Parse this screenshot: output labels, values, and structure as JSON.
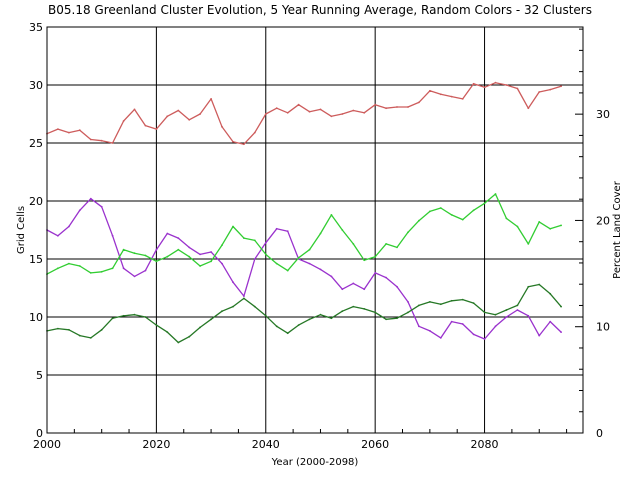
{
  "chart_data": {
    "type": "line",
    "title": "B05.18 Greenland Cluster Evolution, 5 Year Running Average, Random Colors - 32 Clusters",
    "xlabel": "Year (2000-2098)",
    "ylabel": "Grid Cells",
    "y2label": "Percent Land Cover",
    "xlim": [
      2000,
      2098
    ],
    "ylim": [
      0,
      35
    ],
    "y2lim": [
      0,
      38.2
    ],
    "x_ticks": [
      "2000",
      "2020",
      "2040",
      "2060",
      "2080"
    ],
    "x_tick_values": [
      2000,
      2020,
      2040,
      2060,
      2080
    ],
    "y_ticks": [
      "0",
      "5",
      "10",
      "15",
      "20",
      "25",
      "30",
      "35"
    ],
    "y_tick_values": [
      0,
      5,
      10,
      15,
      20,
      25,
      30,
      35
    ],
    "y2_ticks": [
      "0",
      "10",
      "20",
      "30"
    ],
    "y2_tick_values": [
      0,
      10,
      20,
      30
    ],
    "grid": true,
    "series": [
      {
        "color": "#cd5c5c",
        "x": [
          2000,
          2002,
          2004,
          2006,
          2008,
          2010,
          2012,
          2014,
          2016,
          2018,
          2020,
          2022,
          2024,
          2026,
          2028,
          2030,
          2032,
          2034,
          2036,
          2038,
          2040,
          2042,
          2044,
          2046,
          2048,
          2050,
          2052,
          2054,
          2056,
          2058,
          2060,
          2062,
          2064,
          2066,
          2068,
          2070,
          2072,
          2074,
          2076,
          2078,
          2080,
          2082,
          2084,
          2086,
          2088,
          2090,
          2092,
          2094
        ],
        "values": [
          25.8,
          26.2,
          25.9,
          26.1,
          25.3,
          25.2,
          25.0,
          26.9,
          27.9,
          26.5,
          26.2,
          27.3,
          27.8,
          27.0,
          27.5,
          28.8,
          26.4,
          25.1,
          24.9,
          25.9,
          27.5,
          28.0,
          27.6,
          28.3,
          27.7,
          27.9,
          27.3,
          27.5,
          27.8,
          27.6,
          28.3,
          28.0,
          28.1,
          28.1,
          28.5,
          29.5,
          29.2,
          29.0,
          28.8,
          30.1,
          29.8,
          30.2,
          30.0,
          29.7,
          28.0,
          29.4,
          29.6,
          29.9
        ]
      },
      {
        "color": "#9a32cd",
        "x": [
          2000,
          2002,
          2004,
          2006,
          2008,
          2010,
          2012,
          2014,
          2016,
          2018,
          2020,
          2022,
          2024,
          2026,
          2028,
          2030,
          2032,
          2034,
          2036,
          2038,
          2040,
          2042,
          2044,
          2046,
          2048,
          2050,
          2052,
          2054,
          2056,
          2058,
          2060,
          2062,
          2064,
          2066,
          2068,
          2070,
          2072,
          2074,
          2076,
          2078,
          2080,
          2082,
          2084,
          2086,
          2088,
          2090,
          2092,
          2094
        ],
        "values": [
          17.5,
          17.0,
          17.8,
          19.2,
          20.2,
          19.5,
          17.0,
          14.2,
          13.5,
          14.0,
          15.8,
          17.2,
          16.8,
          16.0,
          15.4,
          15.6,
          14.6,
          13.0,
          11.8,
          15.0,
          16.4,
          17.6,
          17.4,
          15.0,
          14.6,
          14.1,
          13.5,
          12.4,
          12.9,
          12.4,
          13.8,
          13.4,
          12.6,
          11.3,
          9.2,
          8.8,
          8.2,
          9.6,
          9.4,
          8.5,
          8.1,
          9.2,
          10.0,
          10.6,
          10.1,
          8.4,
          9.6,
          8.7
        ]
      },
      {
        "color": "#32cd32",
        "x": [
          2000,
          2002,
          2004,
          2006,
          2008,
          2010,
          2012,
          2014,
          2016,
          2018,
          2020,
          2022,
          2024,
          2026,
          2028,
          2030,
          2032,
          2034,
          2036,
          2038,
          2040,
          2042,
          2044,
          2046,
          2048,
          2050,
          2052,
          2054,
          2056,
          2058,
          2060,
          2062,
          2064,
          2066,
          2068,
          2070,
          2072,
          2074,
          2076,
          2078,
          2080,
          2082,
          2084,
          2086,
          2088,
          2090,
          2092,
          2094
        ],
        "values": [
          13.7,
          14.2,
          14.6,
          14.4,
          13.8,
          13.9,
          14.2,
          15.8,
          15.5,
          15.3,
          14.8,
          15.2,
          15.8,
          15.2,
          14.4,
          14.8,
          16.2,
          17.8,
          16.8,
          16.6,
          15.4,
          14.6,
          14.0,
          15.1,
          15.8,
          17.2,
          18.8,
          17.5,
          16.3,
          14.9,
          15.2,
          16.3,
          16.0,
          17.3,
          18.3,
          19.1,
          19.4,
          18.8,
          18.4,
          19.2,
          19.8,
          20.6,
          18.5,
          17.8,
          16.3,
          18.2,
          17.6,
          17.9
        ]
      },
      {
        "color": "#267826",
        "x": [
          2000,
          2002,
          2004,
          2006,
          2008,
          2010,
          2012,
          2014,
          2016,
          2018,
          2020,
          2022,
          2024,
          2026,
          2028,
          2030,
          2032,
          2034,
          2036,
          2038,
          2040,
          2042,
          2044,
          2046,
          2048,
          2050,
          2052,
          2054,
          2056,
          2058,
          2060,
          2062,
          2064,
          2066,
          2068,
          2070,
          2072,
          2074,
          2076,
          2078,
          2080,
          2082,
          2084,
          2086,
          2088,
          2090,
          2092,
          2094
        ],
        "values": [
          8.8,
          9.0,
          8.9,
          8.4,
          8.2,
          8.9,
          9.9,
          10.1,
          10.2,
          10.0,
          9.3,
          8.7,
          7.8,
          8.3,
          9.1,
          9.8,
          10.5,
          10.9,
          11.6,
          10.9,
          10.1,
          9.2,
          8.6,
          9.3,
          9.8,
          10.2,
          9.9,
          10.5,
          10.9,
          10.7,
          10.4,
          9.8,
          9.9,
          10.4,
          11.0,
          11.3,
          11.1,
          11.4,
          11.5,
          11.2,
          10.4,
          10.2,
          10.6,
          11.0,
          12.6,
          12.8,
          12.0,
          10.9
        ]
      }
    ]
  }
}
